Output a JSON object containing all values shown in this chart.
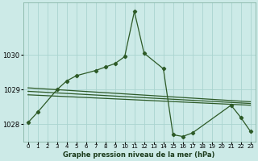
{
  "background_color": "#cceae7",
  "grid_color": "#aad4d0",
  "line_color": "#2d5a27",
  "title": "Graphe pression niveau de la mer (hPa)",
  "xlim": [
    -0.5,
    23.5
  ],
  "ylim": [
    1027.5,
    1031.5
  ],
  "yticks": [
    1028,
    1029,
    1030
  ],
  "xticks": [
    0,
    1,
    2,
    3,
    4,
    5,
    6,
    7,
    8,
    9,
    10,
    11,
    12,
    13,
    14,
    15,
    16,
    17,
    18,
    19,
    20,
    21,
    22,
    23
  ],
  "series_main": {
    "x": [
      0,
      1,
      3,
      4,
      5,
      7,
      8,
      9,
      10,
      11,
      12,
      14,
      15,
      16,
      17,
      21,
      22,
      23
    ],
    "y": [
      1028.05,
      1028.35,
      1029.0,
      1029.25,
      1029.4,
      1029.55,
      1029.65,
      1029.75,
      1029.95,
      1031.25,
      1030.05,
      1029.6,
      1027.7,
      1027.65,
      1027.75,
      1028.55,
      1028.2,
      1027.8
    ]
  },
  "trend_lines": [
    {
      "x": [
        0,
        23
      ],
      "y": [
        1028.85,
        1028.55
      ]
    },
    {
      "x": [
        0,
        23
      ],
      "y": [
        1028.95,
        1028.6
      ]
    },
    {
      "x": [
        0,
        23
      ],
      "y": [
        1029.05,
        1028.65
      ]
    }
  ]
}
